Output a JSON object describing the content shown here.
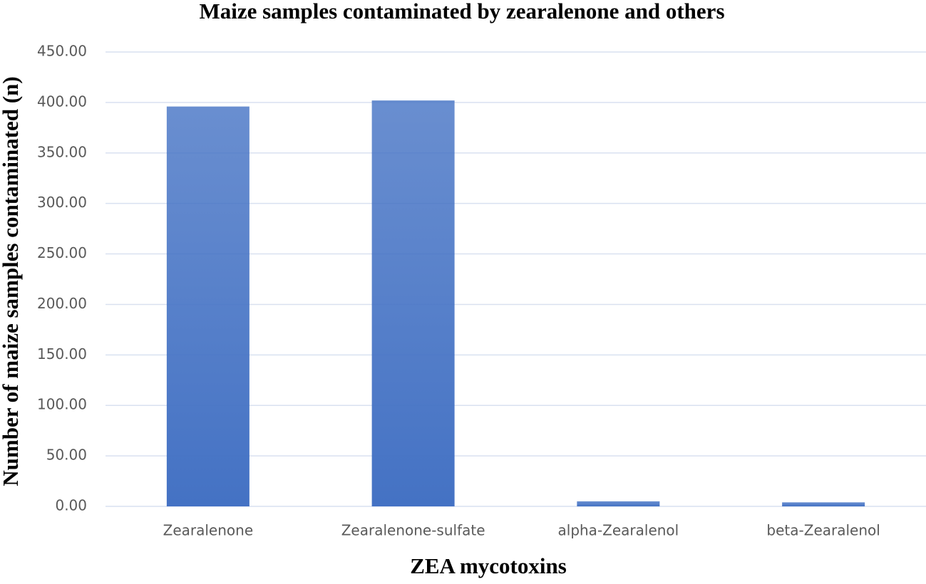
{
  "chart_data": {
    "type": "bar",
    "title": "Maize samples contaminated by zearalenone and others",
    "x_label": "ZEA mycotoxins",
    "y_label": "Number of maize samples contaminated (n)",
    "categories": [
      "Zearalenone",
      "Zearalenone-sulfate",
      "alpha-Zearalenol",
      "beta-Zearalenol"
    ],
    "values": [
      396,
      402,
      5,
      4
    ],
    "color": "#4472c4",
    "ylim": [
      0,
      450
    ],
    "yticks": [
      {
        "value": 0,
        "label": "0.00"
      },
      {
        "value": 50,
        "label": "50.00"
      },
      {
        "value": 100,
        "label": "100.00"
      },
      {
        "value": 150,
        "label": "150.00"
      },
      {
        "value": 200,
        "label": "200.00"
      },
      {
        "value": 250,
        "label": "250.00"
      },
      {
        "value": 300,
        "label": "300.00"
      },
      {
        "value": 350,
        "label": "350.00"
      },
      {
        "value": 400,
        "label": "400.00"
      },
      {
        "value": 450,
        "label": "450.00"
      }
    ],
    "grid": true
  }
}
